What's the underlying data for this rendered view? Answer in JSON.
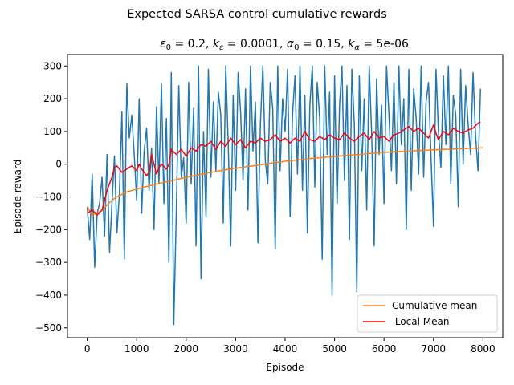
{
  "figure": {
    "suptitle": "Expected SARSA control cumulative rewards",
    "subtitle_parts": {
      "eps0_sym": "ε",
      "eps0_sub": "0",
      "eps0_val": " = 0.2, ",
      "keps_sym": "k",
      "keps_sub": "ε",
      "keps_val": " = 0.0001, ",
      "alpha0_sym": "α",
      "alpha0_sub": "0",
      "alpha0_val": " = 0.15, ",
      "kalpha_sym": "k",
      "kalpha_sub": "α",
      "kalpha_val": " = 5e-06"
    }
  },
  "chart_data": {
    "type": "line",
    "xlabel": "Episode",
    "ylabel": "Episode reward",
    "xlim": [
      -400,
      8400
    ],
    "ylim": [
      -530,
      335
    ],
    "xticks": [
      0,
      1000,
      2000,
      3000,
      4000,
      5000,
      6000,
      7000,
      8000
    ],
    "yticks": [
      -500,
      -400,
      -300,
      -200,
      -100,
      0,
      100,
      200,
      300
    ],
    "legend_location": "lower right",
    "series": [
      {
        "name": "",
        "color": "#1f77b4",
        "x": [
          0,
          50,
          100,
          150,
          200,
          250,
          300,
          350,
          400,
          450,
          500,
          550,
          600,
          650,
          700,
          750,
          800,
          850,
          900,
          950,
          1000,
          1050,
          1100,
          1150,
          1200,
          1250,
          1300,
          1350,
          1400,
          1450,
          1500,
          1550,
          1600,
          1650,
          1700,
          1750,
          1800,
          1850,
          1900,
          1950,
          2000,
          2050,
          2100,
          2150,
          2200,
          2250,
          2300,
          2350,
          2400,
          2450,
          2500,
          2550,
          2600,
          2650,
          2700,
          2750,
          2800,
          2850,
          2900,
          2950,
          3000,
          3050,
          3100,
          3150,
          3200,
          3250,
          3300,
          3350,
          3400,
          3450,
          3500,
          3550,
          3600,
          3650,
          3700,
          3750,
          3800,
          3850,
          3900,
          3950,
          4000,
          4050,
          4100,
          4150,
          4200,
          4250,
          4300,
          4350,
          4400,
          4450,
          4500,
          4550,
          4600,
          4650,
          4700,
          4750,
          4800,
          4850,
          4900,
          4950,
          5000,
          5050,
          5100,
          5150,
          5200,
          5250,
          5300,
          5350,
          5400,
          5450,
          5500,
          5550,
          5600,
          5650,
          5700,
          5750,
          5800,
          5850,
          5900,
          5950,
          6000,
          6050,
          6100,
          6150,
          6200,
          6250,
          6300,
          6350,
          6400,
          6450,
          6500,
          6550,
          6600,
          6650,
          6700,
          6750,
          6800,
          6850,
          6900,
          6950,
          7000,
          7050,
          7100,
          7150,
          7200,
          7250,
          7300,
          7350,
          7400,
          7450,
          7500,
          7550,
          7600,
          7650,
          7700,
          7750,
          7800,
          7850,
          7900,
          7950
        ],
        "y": [
          -130,
          -230,
          -30,
          -315,
          -150,
          -120,
          -40,
          -220,
          30,
          -270,
          -120,
          25,
          -210,
          -90,
          160,
          -290,
          245,
          80,
          150,
          30,
          -110,
          200,
          -150,
          40,
          110,
          -80,
          50,
          -200,
          175,
          -60,
          245,
          -120,
          140,
          -300,
          280,
          -490,
          -150,
          240,
          -40,
          20,
          -180,
          250,
          -60,
          170,
          -250,
          300,
          -350,
          100,
          -160,
          290,
          -40,
          190,
          -20,
          220,
          150,
          -180,
          300,
          60,
          -250,
          210,
          -80,
          280,
          160,
          -50,
          230,
          -140,
          300,
          40,
          190,
          -240,
          120,
          300,
          10,
          -60,
          250,
          170,
          -260,
          300,
          -20,
          200,
          100,
          290,
          -160,
          150,
          270,
          -30,
          300,
          -80,
          210,
          -210,
          180,
          300,
          -70,
          250,
          140,
          -290,
          300,
          30,
          220,
          -400,
          270,
          -120,
          180,
          300,
          -50,
          240,
          -230,
          290,
          120,
          -390,
          270,
          -20,
          200,
          -140,
          300,
          90,
          -250,
          260,
          30,
          180,
          -120,
          300,
          150,
          -20,
          250,
          -60,
          300,
          60,
          200,
          -200,
          290,
          -80,
          230,
          140,
          -30,
          300,
          -40,
          190,
          250,
          20,
          -190,
          290,
          100,
          -10,
          270,
          60,
          300,
          -60,
          210,
          150,
          -130,
          290,
          0,
          240,
          120,
          30,
          280,
          90,
          -20,
          230
        ]
      },
      {
        "name": "Cumulative mean",
        "color": "#ff7f0e",
        "x": [
          0,
          100,
          200,
          300,
          400,
          500,
          600,
          700,
          800,
          1000,
          1200,
          1400,
          1600,
          1800,
          2000,
          2200,
          2400,
          2600,
          2800,
          3000,
          3200,
          3500,
          4000,
          4500,
          5000,
          5500,
          6000,
          6500,
          7000,
          7500,
          8000
        ],
        "y": [
          -130,
          -155,
          -150,
          -140,
          -125,
          -110,
          -100,
          -92,
          -85,
          -76,
          -68,
          -61,
          -54,
          -47,
          -40,
          -34,
          -28,
          -22,
          -17,
          -12,
          -8,
          -2,
          9,
          17,
          24,
          30,
          36,
          40,
          44,
          47,
          50
        ]
      },
      {
        "name": " Local Mean",
        "color": "#ff0000",
        "x": [
          0,
          100,
          200,
          300,
          400,
          500,
          550,
          600,
          700,
          800,
          900,
          1000,
          1050,
          1100,
          1200,
          1250,
          1300,
          1400,
          1450,
          1500,
          1600,
          1650,
          1700,
          1800,
          1900,
          2000,
          2100,
          2200,
          2300,
          2400,
          2500,
          2600,
          2700,
          2800,
          2900,
          3000,
          3100,
          3200,
          3300,
          3400,
          3500,
          3600,
          3700,
          3800,
          3900,
          4000,
          4100,
          4200,
          4300,
          4400,
          4500,
          4600,
          4700,
          4800,
          4900,
          5000,
          5100,
          5200,
          5300,
          5400,
          5500,
          5600,
          5700,
          5800,
          5900,
          6000,
          6100,
          6200,
          6300,
          6400,
          6500,
          6600,
          6700,
          6800,
          6900,
          7000,
          7050,
          7100,
          7200,
          7300,
          7400,
          7500,
          7600,
          7700,
          7800,
          7900,
          7950
        ],
        "y": [
          -150,
          -140,
          -155,
          -140,
          -80,
          -40,
          -10,
          -5,
          -25,
          -15,
          -5,
          -20,
          0,
          -15,
          -35,
          -25,
          30,
          -30,
          -10,
          0,
          -15,
          0,
          45,
          30,
          45,
          25,
          50,
          40,
          60,
          55,
          70,
          45,
          70,
          55,
          80,
          60,
          75,
          50,
          70,
          65,
          80,
          70,
          75,
          90,
          70,
          80,
          65,
          80,
          70,
          100,
          75,
          70,
          85,
          75,
          90,
          80,
          75,
          95,
          80,
          70,
          85,
          95,
          75,
          100,
          80,
          85,
          70,
          90,
          95,
          105,
          115,
          100,
          110,
          95,
          80,
          120,
          95,
          75,
          100,
          90,
          110,
          100,
          95,
          105,
          110,
          125,
          130
        ]
      }
    ]
  }
}
